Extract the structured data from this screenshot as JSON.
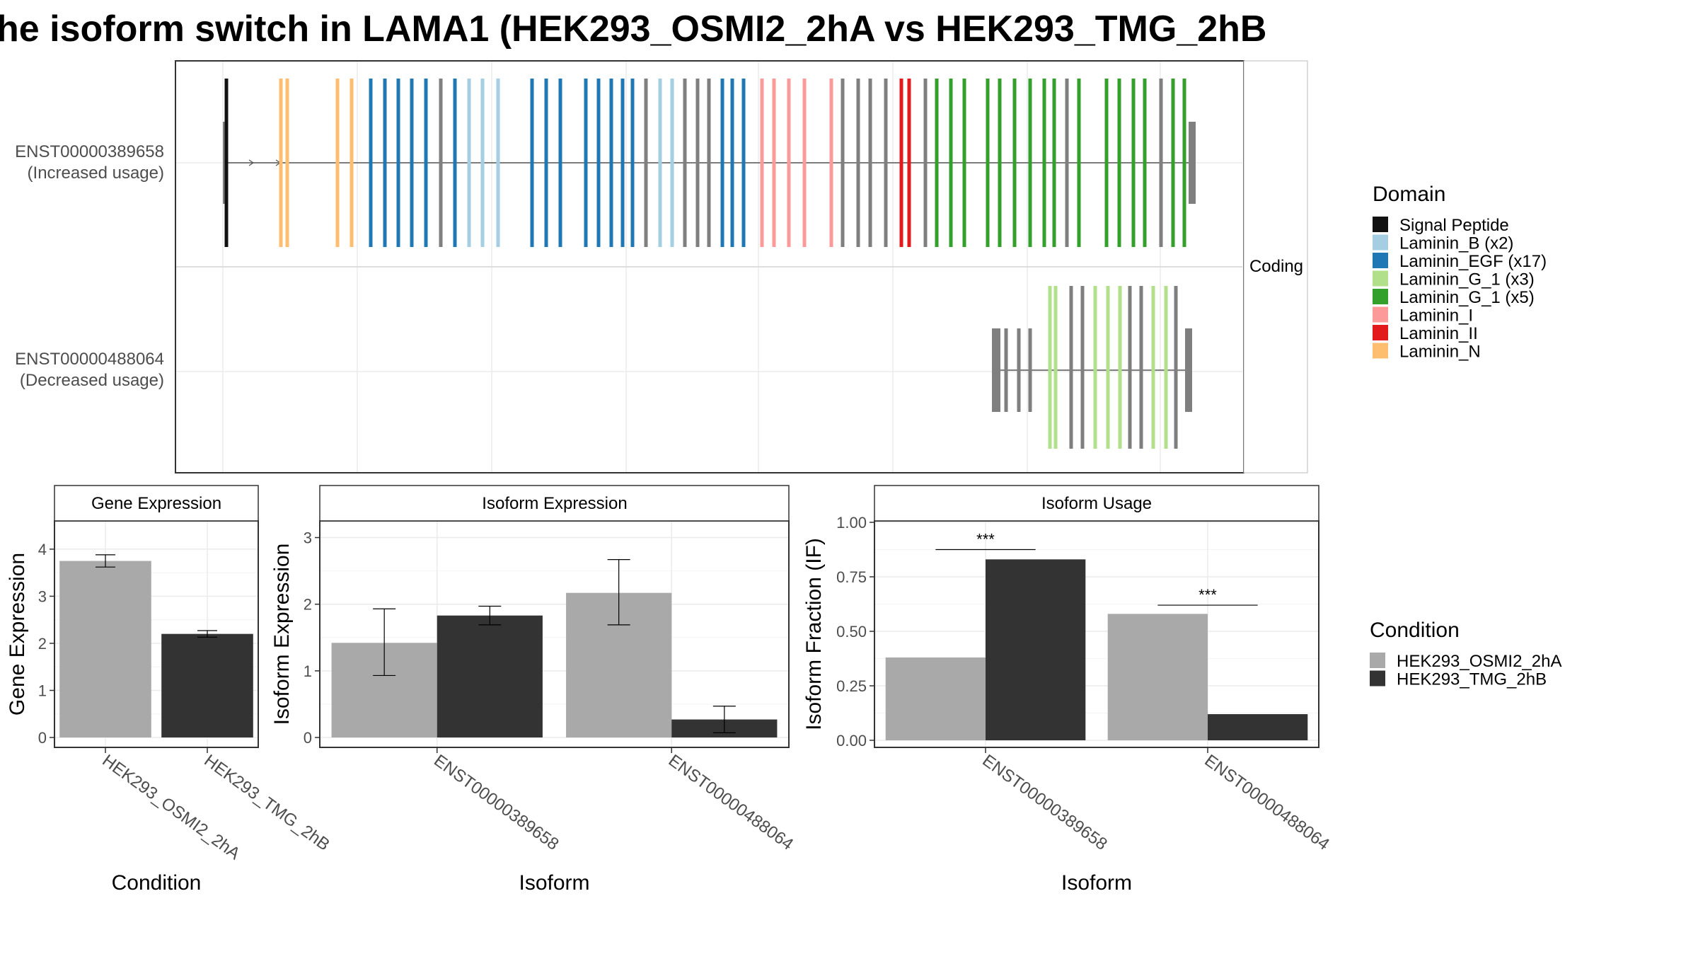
{
  "title": "he isoform switch in LAMA1 (HEK293_OSMI2_2hA vs HEK293_TMG_2hB",
  "structure_panel": {
    "strip_label": "Coding",
    "transcripts": [
      {
        "id": "ENST00000389658",
        "usage": "(Increased usage)"
      },
      {
        "id": "ENST00000488064",
        "usage": "(Decreased usage)"
      }
    ]
  },
  "domain_legend": {
    "title": "Domain",
    "items": [
      {
        "label": "Signal Peptide",
        "color": "#111111"
      },
      {
        "label": "Laminin_B (x2)",
        "color": "#a6cee3"
      },
      {
        "label": "Laminin_EGF (x17)",
        "color": "#1f78b4"
      },
      {
        "label": "Laminin_G_1 (x3)",
        "color": "#b2df8a"
      },
      {
        "label": "Laminin_G_1 (x5)",
        "color": "#33a02c"
      },
      {
        "label": "Laminin_I",
        "color": "#fb9a99"
      },
      {
        "label": "Laminin_II",
        "color": "#e31a1c"
      },
      {
        "label": "Laminin_N",
        "color": "#fdbf6f"
      }
    ]
  },
  "condition_legend": {
    "title": "Condition",
    "items": [
      {
        "label": "HEK293_OSMI2_2hA",
        "color": "#a9a9a9"
      },
      {
        "label": "HEK293_TMG_2hB",
        "color": "#333333"
      }
    ]
  },
  "chart_data": [
    {
      "type": "bar",
      "title": "Gene Expression",
      "xlabel": "Condition",
      "ylabel": "Gene Expression",
      "categories": [
        "HEK293_OSMI2_2hA",
        "HEK293_TMG_2hB"
      ],
      "values": [
        3.75,
        2.2
      ],
      "errors": [
        [
          3.62,
          3.88
        ],
        [
          2.13,
          2.27
        ]
      ],
      "colors": [
        "#a9a9a9",
        "#333333"
      ],
      "ylim": [
        0,
        4.6
      ],
      "yticks": [
        "0",
        "1",
        "2",
        "3",
        "4"
      ],
      "grid": true
    },
    {
      "type": "bar",
      "title": "Isoform Expression",
      "xlabel": "Isoform",
      "ylabel": "Isoform Expression",
      "categories": [
        "ENST00000389658",
        "ENST00000488064"
      ],
      "series": [
        {
          "values": [
            1.42,
            2.17
          ],
          "errors": [
            [
              0.93,
              1.93
            ],
            [
              1.69,
              2.67
            ]
          ],
          "color": "#a9a9a9"
        },
        {
          "values": [
            1.83,
            0.27
          ],
          "errors": [
            [
              1.69,
              1.97
            ],
            [
              0.07,
              0.47
            ]
          ],
          "color": "#333333"
        }
      ],
      "ylim": [
        0,
        3.25
      ],
      "yticks": [
        "0",
        "1",
        "2",
        "3"
      ],
      "grid": true
    },
    {
      "type": "bar",
      "title": "Isoform Usage",
      "xlabel": "Isoform",
      "ylabel": "Isoform Fraction (IF)",
      "categories": [
        "ENST00000389658",
        "ENST00000488064"
      ],
      "series": [
        {
          "values": [
            0.38,
            0.58
          ],
          "color": "#a9a9a9"
        },
        {
          "values": [
            0.83,
            0.12
          ],
          "color": "#333333"
        }
      ],
      "significance": [
        "***",
        "***"
      ],
      "significance_y": [
        0.875,
        0.62
      ],
      "ylim": [
        0,
        1.0
      ],
      "yticks": [
        "0.00",
        "0.25",
        "0.50",
        "0.75",
        "1.00"
      ],
      "grid": true
    }
  ]
}
